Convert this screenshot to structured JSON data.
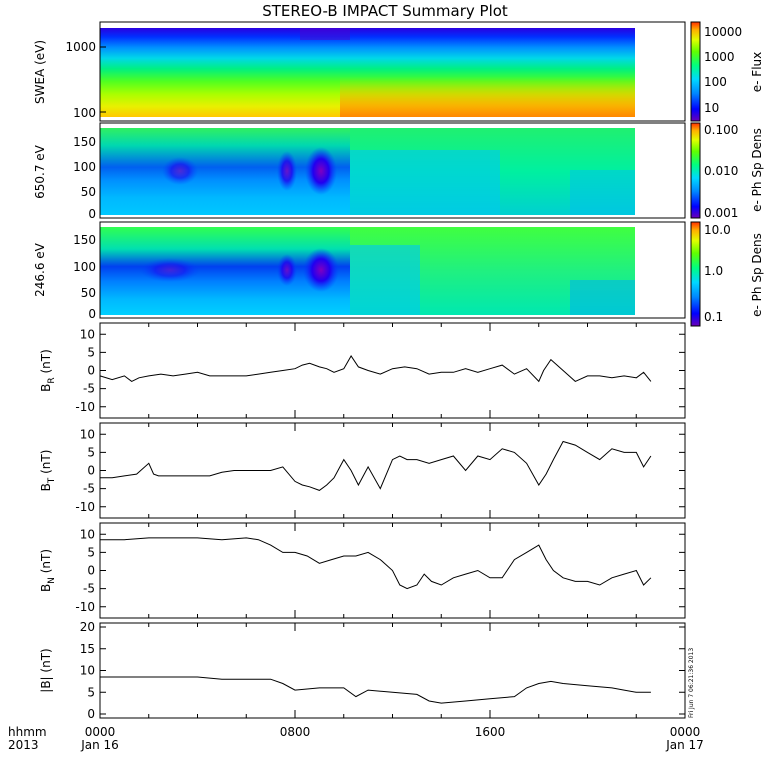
{
  "title": "STEREO-B IMPACT Summary Plot",
  "stamp": "Fri Jun  7 06:21:36 2013",
  "colors": {
    "rainbow": [
      "#6a00b8",
      "#0000ff",
      "#0088ff",
      "#00d8ff",
      "#00ff80",
      "#60ff00",
      "#e0ff00",
      "#ffb000",
      "#ff3000"
    ]
  },
  "chart_data": [
    {
      "type": "heatmap",
      "ylabel": "SWEA (eV)",
      "ytick_labels": [
        "1000",
        "100"
      ],
      "colorbar_label": "e- Flux",
      "colorbar_ticks": [
        "10000",
        "1000",
        "100",
        "10"
      ],
      "scale": "log",
      "xrange_hours": [
        0,
        24
      ],
      "data_end_hour": 22.8
    },
    {
      "type": "heatmap",
      "ylabel": "650.7 eV",
      "ytick_labels": [
        "150",
        "100",
        "50",
        "0"
      ],
      "colorbar_label": "e- Ph Sp Dens",
      "colorbar_ticks": [
        "0.100",
        "0.010",
        "0.001"
      ],
      "scale": "log",
      "ylim": [
        0,
        180
      ],
      "data_end_hour": 22.8
    },
    {
      "type": "heatmap",
      "ylabel": "246.6 eV",
      "ytick_labels": [
        "150",
        "100",
        "50",
        "0"
      ],
      "colorbar_label": "e- Ph Sp Dens",
      "colorbar_ticks": [
        "10.0",
        "1.0",
        "0.1"
      ],
      "scale": "log",
      "ylim": [
        0,
        180
      ],
      "data_end_hour": 22.8
    },
    {
      "type": "line",
      "ylabel_main": "B",
      "ylabel_sub": "R",
      "ylabel_tail": " (nT)",
      "ylim": [
        -12,
        12
      ],
      "ytick_labels": [
        "10",
        "5",
        "0",
        "-5",
        "-10"
      ],
      "ytick_values": [
        10,
        5,
        0,
        -5,
        -10
      ],
      "x": [
        0,
        0.5,
        1,
        1.3,
        1.6,
        2,
        2.5,
        3,
        3.5,
        4,
        4.5,
        5,
        5.5,
        6,
        6.5,
        7,
        7.5,
        8,
        8.3,
        8.6,
        9,
        9.3,
        9.6,
        10,
        10.3,
        10.6,
        11,
        11.5,
        12,
        12.5,
        13,
        13.5,
        14,
        14.5,
        15,
        15.5,
        16,
        16.5,
        17,
        17.5,
        18,
        18.2,
        18.5,
        19,
        19.5,
        20,
        20.5,
        21,
        21.5,
        22,
        22.3,
        22.6
      ],
      "y": [
        -1.5,
        -2.5,
        -1.5,
        -3,
        -2,
        -1.5,
        -1,
        -1.5,
        -1,
        -0.5,
        -1.5,
        -1.5,
        -1.5,
        -1.5,
        -1,
        -0.5,
        0,
        0.5,
        1.5,
        2,
        1,
        0.5,
        -0.5,
        0.5,
        4,
        1,
        0,
        -1,
        0.5,
        1,
        0.5,
        -1,
        -0.5,
        -0.5,
        0.5,
        -0.5,
        0.5,
        1.5,
        -1,
        0.5,
        -3,
        0,
        3,
        0,
        -3,
        -1.5,
        -1.5,
        -2,
        -1.5,
        -2,
        -0.5,
        -3
      ]
    },
    {
      "type": "line",
      "ylabel_main": "B",
      "ylabel_sub": "T",
      "ylabel_tail": " (nT)",
      "ylim": [
        -12,
        12
      ],
      "ytick_labels": [
        "10",
        "5",
        "0",
        "-5",
        "-10"
      ],
      "ytick_values": [
        10,
        5,
        0,
        -5,
        -10
      ],
      "x": [
        0,
        0.5,
        1,
        1.5,
        2,
        2.2,
        2.4,
        3,
        3.5,
        4,
        4.5,
        5,
        5.5,
        6,
        6.5,
        7,
        7.5,
        8,
        8.3,
        8.6,
        9,
        9.3,
        9.6,
        10,
        10.3,
        10.6,
        11,
        11.5,
        12,
        12.3,
        12.6,
        13,
        13.5,
        14,
        14.5,
        15,
        15.5,
        16,
        16.5,
        17,
        17.5,
        18,
        18.3,
        18.6,
        19,
        19.5,
        20,
        20.5,
        21,
        21.5,
        22,
        22.3,
        22.6
      ],
      "y": [
        -2,
        -2,
        -1.5,
        -1,
        2,
        -1,
        -1.5,
        -1.5,
        -1.5,
        -1.5,
        -1.5,
        -0.5,
        0,
        0,
        0,
        0,
        1,
        -3,
        -4,
        -4.5,
        -5.5,
        -4,
        -2,
        3,
        0,
        -4,
        1,
        -5,
        3,
        4,
        3,
        3,
        2,
        3,
        4,
        0,
        4,
        3,
        6,
        5,
        2,
        -4,
        -1,
        3,
        8,
        7,
        5,
        3,
        6,
        5,
        5,
        1,
        4
      ]
    },
    {
      "type": "line",
      "ylabel_main": "B",
      "ylabel_sub": "N",
      "ylabel_tail": " (nT)",
      "ylim": [
        -12,
        12
      ],
      "ytick_labels": [
        "10",
        "5",
        "0",
        "-5",
        "-10"
      ],
      "ytick_values": [
        10,
        5,
        0,
        -5,
        -10
      ],
      "x": [
        0,
        1,
        2,
        3,
        4,
        5,
        6,
        6.5,
        7,
        7.5,
        8,
        8.5,
        9,
        9.5,
        10,
        10.5,
        11,
        11.5,
        12,
        12.3,
        12.6,
        13,
        13.3,
        13.6,
        14,
        14.5,
        15,
        15.5,
        16,
        16.5,
        17,
        17.5,
        18,
        18.3,
        18.6,
        19,
        19.5,
        20,
        20.5,
        21,
        21.5,
        22,
        22.3,
        22.6
      ],
      "y": [
        8.5,
        8.5,
        9,
        9,
        9,
        8.5,
        9,
        8.5,
        7,
        5,
        5,
        4,
        2,
        3,
        4,
        4,
        5,
        3,
        0,
        -4,
        -5,
        -4,
        -1,
        -3,
        -4,
        -2,
        -1,
        0,
        -2,
        -2,
        3,
        5,
        7,
        3,
        0,
        -2,
        -3,
        -3,
        -4,
        -2,
        -1,
        0,
        -4,
        -2
      ]
    },
    {
      "type": "line",
      "ylabel": "|B| (nT)",
      "ylim": [
        0,
        20
      ],
      "ytick_labels": [
        "20",
        "15",
        "10",
        "5",
        "0"
      ],
      "ytick_values": [
        20,
        15,
        10,
        5,
        0
      ],
      "x": [
        0,
        1,
        2,
        3,
        4,
        5,
        6,
        7,
        7.5,
        8,
        9,
        10,
        10.5,
        11,
        12,
        13,
        13.5,
        14,
        15,
        16,
        17,
        17.5,
        18,
        18.5,
        19,
        20,
        21,
        21.5,
        22,
        22.6
      ],
      "y": [
        8.5,
        8.5,
        8.5,
        8.5,
        8.5,
        8,
        8,
        8,
        7,
        5.5,
        6,
        6,
        4,
        5.5,
        5,
        4.5,
        3,
        2.5,
        3,
        3.5,
        4,
        6,
        7,
        7.5,
        7,
        6.5,
        6,
        5.5,
        5,
        5
      ]
    }
  ],
  "x_axis": {
    "labels": [
      "0000",
      "0800",
      "1600",
      "0000"
    ],
    "dates": [
      "Jan 16",
      "",
      "",
      "Jan 17"
    ],
    "left_label_top": "hhmm",
    "left_label_bottom": "2013"
  }
}
